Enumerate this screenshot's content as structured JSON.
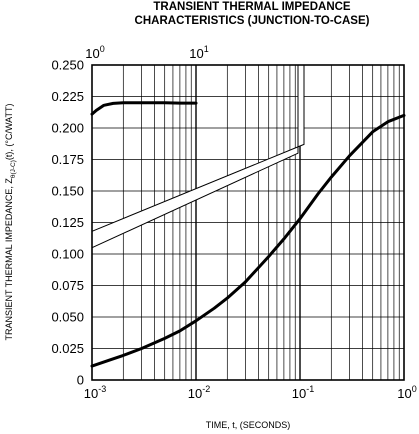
{
  "chart_data": {
    "type": "line",
    "title_lines": [
      "TRANSIENT THERMAL IMPEDANCE",
      "CHARACTERISTICS (JUNCTION-TO-CASE)"
    ],
    "xlabel": "TIME, t, (SECONDS)",
    "ylabel_main": "TRANSIENT THERMAL IMPEDANCE, Z",
    "ylabel_sub": "θ(J-C)",
    "ylabel_tail": "(t), (°C/WATT)",
    "x_scale": "log",
    "xlim": [
      0.001,
      1
    ],
    "ylim": [
      0,
      0.25
    ],
    "grid": true,
    "x_ticks": [
      {
        "value": 0.001,
        "base": "10",
        "exp": "-3"
      },
      {
        "value": 0.01,
        "base": "10",
        "exp": "-2"
      },
      {
        "value": 0.1,
        "base": "10",
        "exp": "-1"
      },
      {
        "value": 1,
        "base": "10",
        "exp": "0"
      }
    ],
    "y_ticks": [
      {
        "value": 0,
        "label": "0"
      },
      {
        "value": 0.025,
        "label": "0.025"
      },
      {
        "value": 0.05,
        "label": "0.050"
      },
      {
        "value": 0.075,
        "label": "0.075"
      },
      {
        "value": 0.1,
        "label": "0.100"
      },
      {
        "value": 0.125,
        "label": "0.125"
      },
      {
        "value": 0.15,
        "label": "0.150"
      },
      {
        "value": 0.175,
        "label": "0.175"
      },
      {
        "value": 0.2,
        "label": "0.200"
      },
      {
        "value": 0.225,
        "label": "0.225"
      },
      {
        "value": 0.25,
        "label": "0.250"
      }
    ],
    "top_axis": {
      "scale": "log",
      "xlim": [
        1,
        10
      ],
      "ticks": [
        {
          "value": 1,
          "base": "10",
          "exp": "0"
        },
        {
          "value": 10,
          "base": "10",
          "exp": "1"
        }
      ]
    },
    "series": [
      {
        "axis": "bottom",
        "x": [
          0.001,
          0.0015,
          0.002,
          0.003,
          0.005,
          0.007,
          0.01,
          0.015,
          0.02,
          0.03,
          0.05,
          0.07,
          0.1,
          0.15,
          0.2,
          0.3,
          0.5,
          0.7,
          1
        ],
        "y": [
          0.011,
          0.016,
          0.0195,
          0.025,
          0.033,
          0.039,
          0.047,
          0.057,
          0.065,
          0.078,
          0.098,
          0.112,
          0.128,
          0.148,
          0.161,
          0.178,
          0.197,
          0.205,
          0.21
        ]
      },
      {
        "axis": "top",
        "x": [
          1,
          1.1,
          1.3,
          1.6,
          2,
          3,
          5,
          7,
          10
        ],
        "y": [
          0.211,
          0.214,
          0.218,
          0.2195,
          0.22,
          0.22,
          0.22,
          0.2198,
          0.2198
        ]
      }
    ]
  }
}
